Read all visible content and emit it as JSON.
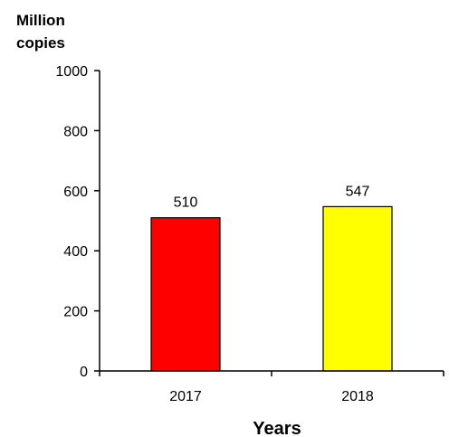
{
  "chart_data": {
    "type": "bar",
    "ylabel": "Million copies",
    "ylabel_lines": [
      "Million",
      "copies"
    ],
    "xlabel": "Years",
    "categories": [
      "2017",
      "2018"
    ],
    "values": [
      510,
      547
    ],
    "data_labels": [
      "510",
      "547"
    ],
    "bar_colors": [
      "#ff0000",
      "#ffff00"
    ],
    "ylim": [
      0,
      1000
    ],
    "yticks": [
      0,
      200,
      400,
      600,
      800,
      1000
    ],
    "ytick_labels": [
      "0",
      "200",
      "400",
      "600",
      "800",
      "1000"
    ],
    "grid": false,
    "legend": "none"
  }
}
